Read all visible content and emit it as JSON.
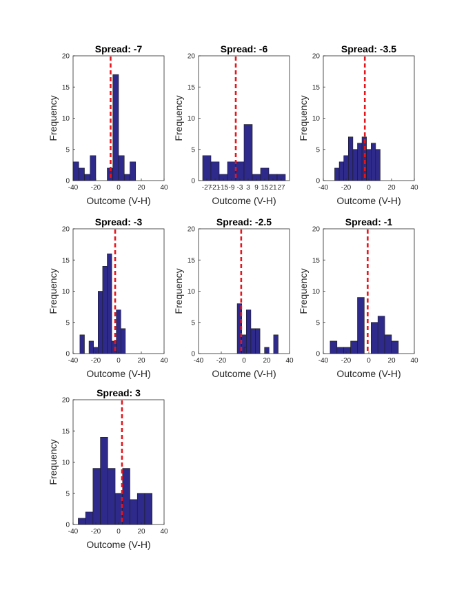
{
  "chart_data": [
    {
      "type": "bar",
      "title": "Spread: -7",
      "xlabel": "Outcome (V-H)",
      "ylabel": "Frequency",
      "xlim": [
        -40,
        40
      ],
      "ylim": [
        0,
        20
      ],
      "xticks": [
        "-40",
        "-20",
        "0",
        "20",
        "40"
      ],
      "yticks": [
        "0",
        "5",
        "10",
        "15",
        "20"
      ],
      "bar_width": 5,
      "bins": [
        {
          "x0": -40,
          "count": 3
        },
        {
          "x0": -35,
          "count": 2
        },
        {
          "x0": -30,
          "count": 1
        },
        {
          "x0": -25,
          "count": 4
        },
        {
          "x0": -20,
          "count": 0
        },
        {
          "x0": -15,
          "count": 0
        },
        {
          "x0": -10,
          "count": 2
        },
        {
          "x0": -5,
          "count": 17
        },
        {
          "x0": 0,
          "count": 4
        },
        {
          "x0": 5,
          "count": 1
        },
        {
          "x0": 10,
          "count": 3
        }
      ],
      "reference_line": -7
    },
    {
      "type": "bar",
      "title": "Spread: -6",
      "xlabel": "Outcome (V-H)",
      "ylabel": "Frequency",
      "xlim": [
        -33,
        33
      ],
      "ylim": [
        0,
        20
      ],
      "xticks": [
        "-27",
        "-21",
        "-15",
        "-9",
        "-3",
        "3",
        "9",
        "15",
        "21",
        "27"
      ],
      "yticks": [
        "0",
        "5",
        "10",
        "15",
        "20"
      ],
      "bar_width": 6,
      "bins": [
        {
          "x0": -30,
          "count": 4
        },
        {
          "x0": -24,
          "count": 3
        },
        {
          "x0": -18,
          "count": 1
        },
        {
          "x0": -12,
          "count": 3
        },
        {
          "x0": -6,
          "count": 3
        },
        {
          "x0": 0,
          "count": 9
        },
        {
          "x0": 6,
          "count": 1
        },
        {
          "x0": 12,
          "count": 2
        },
        {
          "x0": 18,
          "count": 1
        },
        {
          "x0": 24,
          "count": 1
        }
      ],
      "reference_line": -6
    },
    {
      "type": "bar",
      "title": "Spread: -3.5",
      "xlabel": "Outcome (V-H)",
      "ylabel": "Frequency",
      "xlim": [
        -40,
        40
      ],
      "ylim": [
        0,
        20
      ],
      "xticks": [
        "-40",
        "-20",
        "0",
        "20",
        "40"
      ],
      "yticks": [
        "0",
        "5",
        "10",
        "15",
        "20"
      ],
      "bar_width": 4,
      "bins": [
        {
          "x0": -30,
          "count": 2
        },
        {
          "x0": -26,
          "count": 3
        },
        {
          "x0": -22,
          "count": 4
        },
        {
          "x0": -18,
          "count": 7
        },
        {
          "x0": -14,
          "count": 5
        },
        {
          "x0": -10,
          "count": 6
        },
        {
          "x0": -6,
          "count": 7
        },
        {
          "x0": -2,
          "count": 5
        },
        {
          "x0": 2,
          "count": 6
        },
        {
          "x0": 6,
          "count": 5
        }
      ],
      "reference_line": -3.5
    },
    {
      "type": "bar",
      "title": "Spread: -3",
      "xlabel": "Outcome (V-H)",
      "ylabel": "Frequency",
      "xlim": [
        -40,
        40
      ],
      "ylim": [
        0,
        20
      ],
      "xticks": [
        "-40",
        "-20",
        "0",
        "20",
        "40"
      ],
      "yticks": [
        "0",
        "5",
        "10",
        "15",
        "20"
      ],
      "bar_width": 4,
      "bins": [
        {
          "x0": -34,
          "count": 3
        },
        {
          "x0": -30,
          "count": 0
        },
        {
          "x0": -26,
          "count": 2
        },
        {
          "x0": -22,
          "count": 1
        },
        {
          "x0": -18,
          "count": 10
        },
        {
          "x0": -14,
          "count": 14
        },
        {
          "x0": -10,
          "count": 16
        },
        {
          "x0": -6,
          "count": 2
        },
        {
          "x0": -2,
          "count": 7
        },
        {
          "x0": 2,
          "count": 4
        }
      ],
      "reference_line": -3
    },
    {
      "type": "bar",
      "title": "Spread: -2.5",
      "xlabel": "Outcome (V-H)",
      "ylabel": "Frequency",
      "xlim": [
        -40,
        40
      ],
      "ylim": [
        0,
        20
      ],
      "xticks": [
        "-40",
        "-20",
        "0",
        "20",
        "40"
      ],
      "yticks": [
        "0",
        "5",
        "10",
        "15",
        "20"
      ],
      "bar_width": 4,
      "bins": [
        {
          "x0": -6,
          "count": 8
        },
        {
          "x0": -2,
          "count": 3
        },
        {
          "x0": 0,
          "count": 1
        },
        {
          "x0": 2,
          "count": 7
        },
        {
          "x0": 6,
          "count": 4
        },
        {
          "x0": 10,
          "count": 4
        },
        {
          "x0": 14,
          "count": 0
        },
        {
          "x0": 18,
          "count": 1
        },
        {
          "x0": 22,
          "count": 0
        },
        {
          "x0": 26,
          "count": 3
        }
      ],
      "reference_line": -2.5
    },
    {
      "type": "bar",
      "title": "Spread: -1",
      "xlabel": "Outcome (V-H)",
      "ylabel": "Frequency",
      "xlim": [
        -40,
        40
      ],
      "ylim": [
        0,
        20
      ],
      "xticks": [
        "-40",
        "-20",
        "0",
        "20",
        "40"
      ],
      "yticks": [
        "0",
        "5",
        "10",
        "15",
        "20"
      ],
      "bar_width": 6,
      "bins": [
        {
          "x0": -34,
          "count": 2
        },
        {
          "x0": -28,
          "count": 1
        },
        {
          "x0": -22,
          "count": 1
        },
        {
          "x0": -16,
          "count": 2
        },
        {
          "x0": -10,
          "count": 9
        },
        {
          "x0": -4,
          "count": 0
        },
        {
          "x0": 2,
          "count": 5
        },
        {
          "x0": 8,
          "count": 6
        },
        {
          "x0": 14,
          "count": 3
        },
        {
          "x0": 20,
          "count": 2
        }
      ],
      "reference_line": -1
    },
    {
      "type": "bar",
      "title": "Spread: 3",
      "xlabel": "Outcome (V-H)",
      "ylabel": "Frequency",
      "xlim": [
        -40,
        40
      ],
      "ylim": [
        0,
        20
      ],
      "xticks": [
        "-40",
        "-20",
        "0",
        "20",
        "40"
      ],
      "yticks": [
        "0",
        "5",
        "10",
        "15",
        "20"
      ],
      "bar_width": 6.5,
      "bins": [
        {
          "x0": -35.5,
          "count": 1
        },
        {
          "x0": -29,
          "count": 2
        },
        {
          "x0": -22.5,
          "count": 9
        },
        {
          "x0": -16,
          "count": 14
        },
        {
          "x0": -9.5,
          "count": 9
        },
        {
          "x0": -3,
          "count": 5
        },
        {
          "x0": 3.5,
          "count": 9
        },
        {
          "x0": 10,
          "count": 4
        },
        {
          "x0": 16.5,
          "count": 5
        },
        {
          "x0": 23,
          "count": 5
        }
      ],
      "reference_line": 3
    }
  ],
  "colors": {
    "bar_fill": "#2e2a8c",
    "bar_edge": "#1a1a1a",
    "reference_line": "#e8141c",
    "axis": "#262626"
  }
}
